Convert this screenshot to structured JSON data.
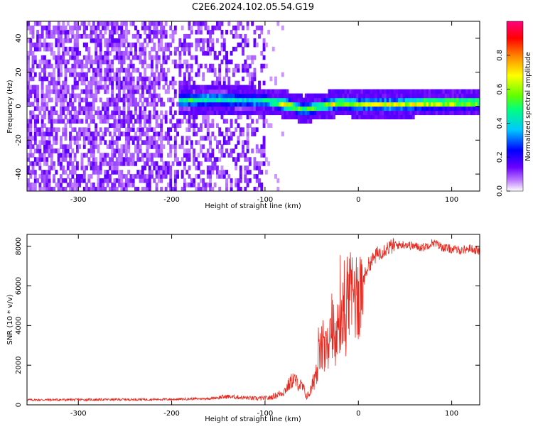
{
  "figure_title": "C2E6.2024.102.05.54.G19",
  "chart_data": [
    {
      "type": "heatmap",
      "xlabel": "Height of straight line (km)",
      "ylabel": "Frequency (Hz)",
      "xlim": [
        -355,
        130
      ],
      "ylim": [
        -50,
        50
      ],
      "xticks": [
        -300,
        -200,
        -100,
        0,
        100
      ],
      "yticks": [
        -40,
        -20,
        0,
        20,
        40
      ],
      "colorbar": {
        "label": "Normalized spectral amplitude",
        "range": [
          0,
          1
        ],
        "ticks": [
          0.0,
          0.2,
          0.4,
          0.6,
          0.8
        ],
        "colors": [
          "#ffffff",
          "#c080ff",
          "#6a00ff",
          "#0000ff",
          "#00c8ff",
          "#00ff80",
          "#60ff00",
          "#ffff00",
          "#ff8000",
          "#ff0000",
          "#ff0080"
        ]
      },
      "noise_region_x": [
        -355,
        -100
      ],
      "signal_ridge": [
        {
          "x": -190,
          "y": 2,
          "amp": 0.45
        },
        {
          "x": -170,
          "y": 3,
          "amp": 0.5
        },
        {
          "x": -150,
          "y": 3,
          "amp": 0.45
        },
        {
          "x": -120,
          "y": 2,
          "amp": 0.4
        },
        {
          "x": -100,
          "y": 2,
          "amp": 0.55
        },
        {
          "x": -80,
          "y": 0,
          "amp": 0.75
        },
        {
          "x": -60,
          "y": -3,
          "amp": 0.55
        },
        {
          "x": -40,
          "y": -1,
          "amp": 0.6
        },
        {
          "x": -20,
          "y": 1,
          "amp": 0.7
        },
        {
          "x": 0,
          "y": 0,
          "amp": 0.6
        },
        {
          "x": 40,
          "y": 0,
          "amp": 0.65
        },
        {
          "x": 80,
          "y": 1,
          "amp": 0.75
        },
        {
          "x": 130,
          "y": 1,
          "amp": 0.7
        }
      ]
    },
    {
      "type": "line",
      "xlabel": "Height of straight line (km)",
      "ylabel": "SNR (10 * v/v)",
      "xlim": [
        -355,
        130
      ],
      "ylim": [
        0,
        8600
      ],
      "xticks": [
        -300,
        -200,
        -100,
        0,
        100
      ],
      "yticks": [
        0,
        2000,
        4000,
        6000,
        8000
      ],
      "series": [
        {
          "color": "#e8281e",
          "x": [
            -355,
            -300,
            -250,
            -200,
            -160,
            -140,
            -110,
            -95,
            -80,
            -70,
            -60,
            -55,
            -50,
            -45,
            -40,
            -35,
            -30,
            -25,
            -20,
            -15,
            -10,
            -5,
            0,
            5,
            10,
            20,
            30,
            40,
            50,
            60,
            70,
            80,
            90,
            100,
            110,
            120,
            130
          ],
          "y": [
            250,
            260,
            270,
            280,
            320,
            420,
            320,
            350,
            650,
            1300,
            900,
            400,
            800,
            1800,
            2800,
            2600,
            3200,
            3000,
            4200,
            4000,
            5200,
            5600,
            5500,
            6200,
            7000,
            7600,
            7900,
            8050,
            8100,
            8000,
            7950,
            8200,
            7950,
            7850,
            7800,
            7900,
            7750
          ]
        }
      ]
    }
  ]
}
